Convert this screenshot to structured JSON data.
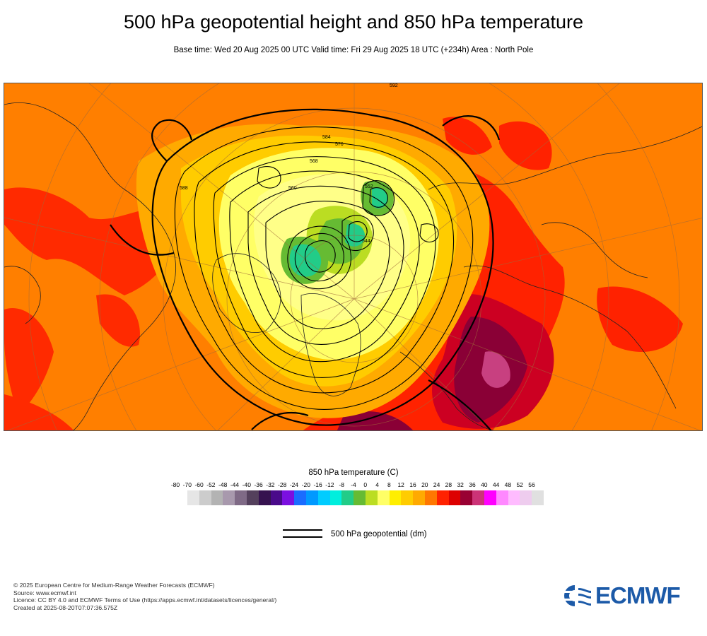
{
  "title": "500 hPa geopotential height and 850 hPa temperature",
  "subtitle": "Base time: Wed 20 Aug 2025 00 UTC Valid time: Fri 29 Aug 2025 18 UTC (+234h) Area : North Pole",
  "map": {
    "contour_labels": [
      {
        "text": "584"
      },
      {
        "text": "576"
      },
      {
        "text": "568"
      },
      {
        "text": "560"
      },
      {
        "text": "552"
      },
      {
        "text": "544"
      },
      {
        "text": "592"
      },
      {
        "text": "588"
      }
    ]
  },
  "legend": {
    "title": "850 hPa temperature (C)",
    "ticks": [
      "-80",
      "-70",
      "-60",
      "-52",
      "-48",
      "-44",
      "-40",
      "-36",
      "-32",
      "-28",
      "-24",
      "-20",
      "-16",
      "-12",
      "-8",
      "-4",
      "0",
      "4",
      "8",
      "12",
      "16",
      "20",
      "24",
      "28",
      "32",
      "36",
      "40",
      "44",
      "48",
      "52",
      "56"
    ],
    "colors": [
      "#e6e6e6",
      "#cccccc",
      "#b3b3b3",
      "#a899ad",
      "#7f6a86",
      "#54405c",
      "#36124f",
      "#4a0a8a",
      "#7b0fe0",
      "#1a6cff",
      "#0099ff",
      "#00ccff",
      "#00eedd",
      "#22cc88",
      "#66bb33",
      "#bbdd22",
      "#ffff66",
      "#ffee00",
      "#ffcc00",
      "#ffaa00",
      "#ff7700",
      "#ff2200",
      "#dd0000",
      "#990033",
      "#cc3377",
      "#ff00ff",
      "#ff88ff",
      "#ffbbff",
      "#eeccee",
      "#e0e0e0"
    ],
    "line_label": "500 hPa geopotential (dm)"
  },
  "footer": {
    "lines": [
      "© 2025 European Centre for Medium-Range Weather Forecasts (ECMWF)",
      "Source: www.ecmwf.int",
      "Licence: CC BY 4.0 and ECMWF Terms of Use (https://apps.ecmwf.int/datasets/licences/general/)",
      "Created at 2025-08-20T07:07:36.575Z"
    ]
  },
  "logo": {
    "text": "ECMWF",
    "color": "#1c5aa8"
  }
}
